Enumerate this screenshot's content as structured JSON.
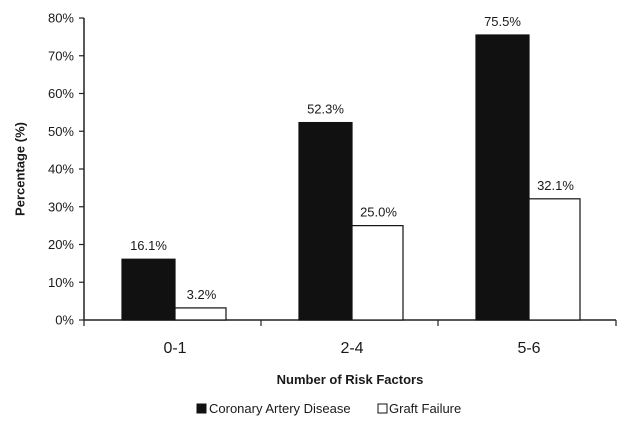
{
  "chart_data": {
    "type": "bar",
    "categories": [
      "0-1",
      "2-4",
      "5-6"
    ],
    "series": [
      {
        "name": "Coronary Artery Disease",
        "values": [
          16.1,
          52.3,
          75.5
        ],
        "labels": [
          "16.1%",
          "52.3%",
          "75.5%"
        ],
        "color": "#111111"
      },
      {
        "name": "Graft Failure",
        "values": [
          3.2,
          25.0,
          32.1
        ],
        "labels": [
          "3.2%",
          "25.0%",
          "32.1%"
        ],
        "color": "#ffffff"
      }
    ],
    "xlabel": "Number of Risk Factors",
    "ylabel": "Percentage (%)",
    "ylim": [
      0,
      80
    ],
    "yticks": [
      0,
      10,
      20,
      30,
      40,
      50,
      60,
      70,
      80
    ],
    "ytick_labels": [
      "0%",
      "10%",
      "20%",
      "30%",
      "40%",
      "50%",
      "60%",
      "70%",
      "80%"
    ],
    "grid": false,
    "legend_position": "bottom"
  }
}
